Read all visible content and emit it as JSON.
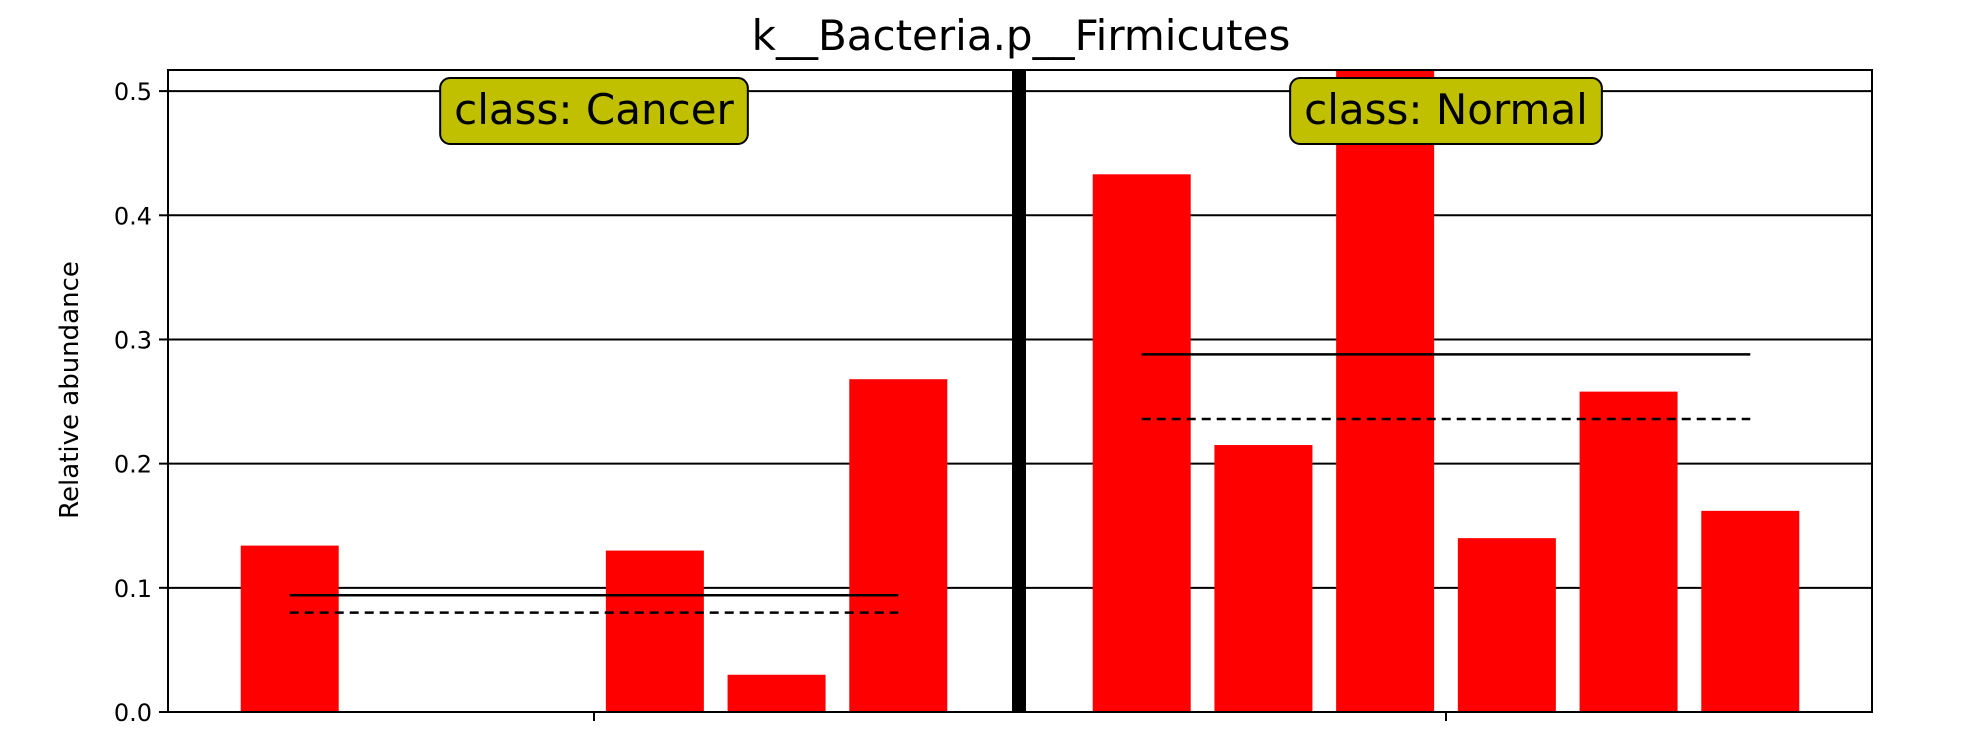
{
  "chart_data": {
    "type": "bar",
    "title": "k__Bacteria.p__Firmicutes",
    "ylabel": "Relative abundance",
    "xlabel": "",
    "ylim": [
      0,
      0.517
    ],
    "yticks": [
      "0.0",
      "0.1",
      "0.2",
      "0.3",
      "0.4",
      "0.5"
    ],
    "grid": "horizontal",
    "bar_color": "#ff0000",
    "groups": [
      {
        "label": "class: Cancer",
        "box_color": "#c0c000",
        "values": [
          0.134,
          0.0,
          0.0,
          0.13,
          0.03,
          0.268
        ],
        "mean": 0.094,
        "median": 0.08
      },
      {
        "label": "class: Normal",
        "box_color": "#c0c000",
        "values": [
          0.433,
          0.215,
          0.517,
          0.14,
          0.258,
          0.162
        ],
        "mean": 0.288,
        "median": 0.236
      }
    ]
  }
}
